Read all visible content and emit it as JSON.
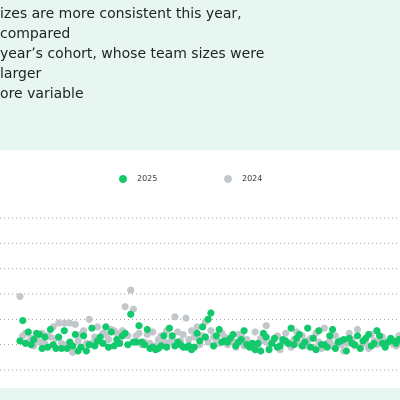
{
  "heading": "izes are more consistent this year, compared\nyear’s cohort, whose team sizes were larger\nore variable",
  "colors": {
    "2025": "#12c96c",
    "2024": "#c2c7cb",
    "background": "#e8f6f1",
    "gridline": "#9aa0a4"
  },
  "chart_data": {
    "type": "scatter",
    "legend": [
      "2025",
      "2024"
    ],
    "legend_position": "top-center",
    "grid": "horizontal",
    "ylim": [
      0,
      120
    ],
    "yticks": [
      0,
      20,
      40,
      60,
      80,
      100,
      120
    ],
    "x_count": 138,
    "series": [
      {
        "name": "2025",
        "points": [
          {
            "x": 1,
            "y": 23
          },
          {
            "x": 2,
            "y": 39
          },
          {
            "x": 3,
            "y": 21
          },
          {
            "x": 4,
            "y": 30
          },
          {
            "x": 5,
            "y": 20
          },
          {
            "x": 6,
            "y": 24
          },
          {
            "x": 7,
            "y": 29
          },
          {
            "x": 8,
            "y": 28
          },
          {
            "x": 9,
            "y": 17
          },
          {
            "x": 10,
            "y": 26
          },
          {
            "x": 11,
            "y": 18
          },
          {
            "x": 12,
            "y": 32
          },
          {
            "x": 13,
            "y": 20
          },
          {
            "x": 14,
            "y": 17
          },
          {
            "x": 15,
            "y": 26
          },
          {
            "x": 16,
            "y": 17
          },
          {
            "x": 17,
            "y": 31
          },
          {
            "x": 18,
            "y": 17
          },
          {
            "x": 19,
            "y": 22
          },
          {
            "x": 20,
            "y": 19
          },
          {
            "x": 21,
            "y": 28
          },
          {
            "x": 22,
            "y": 15
          },
          {
            "x": 23,
            "y": 18
          },
          {
            "x": 24,
            "y": 27
          },
          {
            "x": 25,
            "y": 15
          },
          {
            "x": 26,
            "y": 20
          },
          {
            "x": 27,
            "y": 33
          },
          {
            "x": 28,
            "y": 19
          },
          {
            "x": 29,
            "y": 23
          },
          {
            "x": 30,
            "y": 26
          },
          {
            "x": 31,
            "y": 21
          },
          {
            "x": 32,
            "y": 34
          },
          {
            "x": 33,
            "y": 18
          },
          {
            "x": 34,
            "y": 30
          },
          {
            "x": 35,
            "y": 19
          },
          {
            "x": 36,
            "y": 24
          },
          {
            "x": 37,
            "y": 21
          },
          {
            "x": 38,
            "y": 27
          },
          {
            "x": 39,
            "y": 29
          },
          {
            "x": 40,
            "y": 20
          },
          {
            "x": 41,
            "y": 44
          },
          {
            "x": 42,
            "y": 22
          },
          {
            "x": 43,
            "y": 22
          },
          {
            "x": 44,
            "y": 35
          },
          {
            "x": 45,
            "y": 22
          },
          {
            "x": 46,
            "y": 20
          },
          {
            "x": 47,
            "y": 32
          },
          {
            "x": 48,
            "y": 17
          },
          {
            "x": 49,
            "y": 18
          },
          {
            "x": 50,
            "y": 16
          },
          {
            "x": 51,
            "y": 17
          },
          {
            "x": 52,
            "y": 19
          },
          {
            "x": 53,
            "y": 27
          },
          {
            "x": 54,
            "y": 18
          },
          {
            "x": 55,
            "y": 33
          },
          {
            "x": 56,
            "y": 27
          },
          {
            "x": 57,
            "y": 19
          },
          {
            "x": 58,
            "y": 22
          },
          {
            "x": 59,
            "y": 20
          },
          {
            "x": 60,
            "y": 18
          },
          {
            "x": 61,
            "y": 18
          },
          {
            "x": 62,
            "y": 19
          },
          {
            "x": 63,
            "y": 16
          },
          {
            "x": 64,
            "y": 18
          },
          {
            "x": 65,
            "y": 29
          },
          {
            "x": 66,
            "y": 23
          },
          {
            "x": 67,
            "y": 34
          },
          {
            "x": 68,
            "y": 26
          },
          {
            "x": 69,
            "y": 40
          },
          {
            "x": 70,
            "y": 45
          },
          {
            "x": 71,
            "y": 19
          },
          {
            "x": 72,
            "y": 27
          },
          {
            "x": 73,
            "y": 32
          },
          {
            "x": 74,
            "y": 22
          },
          {
            "x": 75,
            "y": 23
          },
          {
            "x": 76,
            "y": 22
          },
          {
            "x": 77,
            "y": 25
          },
          {
            "x": 78,
            "y": 28
          },
          {
            "x": 79,
            "y": 19
          },
          {
            "x": 80,
            "y": 22
          },
          {
            "x": 81,
            "y": 24
          },
          {
            "x": 82,
            "y": 31
          },
          {
            "x": 83,
            "y": 20
          },
          {
            "x": 84,
            "y": 18
          },
          {
            "x": 85,
            "y": 21
          },
          {
            "x": 86,
            "y": 16
          },
          {
            "x": 87,
            "y": 21
          },
          {
            "x": 88,
            "y": 15
          },
          {
            "x": 89,
            "y": 29
          },
          {
            "x": 90,
            "y": 26
          },
          {
            "x": 91,
            "y": 16
          },
          {
            "x": 92,
            "y": 21
          },
          {
            "x": 93,
            "y": 25
          },
          {
            "x": 94,
            "y": 18
          },
          {
            "x": 95,
            "y": 19
          },
          {
            "x": 96,
            "y": 24
          },
          {
            "x": 97,
            "y": 23
          },
          {
            "x": 98,
            "y": 21
          },
          {
            "x": 99,
            "y": 33
          },
          {
            "x": 100,
            "y": 20
          },
          {
            "x": 101,
            "y": 25
          },
          {
            "x": 102,
            "y": 28
          },
          {
            "x": 103,
            "y": 19
          },
          {
            "x": 104,
            "y": 22
          },
          {
            "x": 105,
            "y": 33
          },
          {
            "x": 106,
            "y": 18
          },
          {
            "x": 107,
            "y": 25
          },
          {
            "x": 108,
            "y": 16
          },
          {
            "x": 109,
            "y": 31
          },
          {
            "x": 110,
            "y": 20
          },
          {
            "x": 111,
            "y": 20
          },
          {
            "x": 112,
            "y": 18
          },
          {
            "x": 113,
            "y": 27
          },
          {
            "x": 114,
            "y": 32
          },
          {
            "x": 115,
            "y": 17
          },
          {
            "x": 116,
            "y": 22
          },
          {
            "x": 117,
            "y": 23
          },
          {
            "x": 118,
            "y": 24
          },
          {
            "x": 119,
            "y": 15
          },
          {
            "x": 120,
            "y": 25
          },
          {
            "x": 121,
            "y": 21
          },
          {
            "x": 122,
            "y": 20
          },
          {
            "x": 123,
            "y": 27
          },
          {
            "x": 124,
            "y": 17
          },
          {
            "x": 125,
            "y": 23
          },
          {
            "x": 126,
            "y": 25
          },
          {
            "x": 127,
            "y": 28
          },
          {
            "x": 128,
            "y": 19
          },
          {
            "x": 129,
            "y": 21
          },
          {
            "x": 130,
            "y": 31
          },
          {
            "x": 131,
            "y": 27
          },
          {
            "x": 132,
            "y": 21
          },
          {
            "x": 133,
            "y": 18
          },
          {
            "x": 134,
            "y": 22
          },
          {
            "x": 135,
            "y": 25
          },
          {
            "x": 136,
            "y": 23
          },
          {
            "x": 137,
            "y": 21
          },
          {
            "x": 138,
            "y": 24
          }
        ]
      },
      {
        "name": "2024",
        "points": [
          {
            "x": 1,
            "y": 58
          },
          {
            "x": 2,
            "y": 27
          },
          {
            "x": 3,
            "y": 29
          },
          {
            "x": 4,
            "y": 22
          },
          {
            "x": 5,
            "y": 25
          },
          {
            "x": 6,
            "y": 19
          },
          {
            "x": 7,
            "y": 27
          },
          {
            "x": 8,
            "y": 22
          },
          {
            "x": 9,
            "y": 29
          },
          {
            "x": 10,
            "y": 21
          },
          {
            "x": 11,
            "y": 27
          },
          {
            "x": 12,
            "y": 26
          },
          {
            "x": 13,
            "y": 34
          },
          {
            "x": 14,
            "y": 25
          },
          {
            "x": 15,
            "y": 37
          },
          {
            "x": 16,
            "y": 21
          },
          {
            "x": 17,
            "y": 37
          },
          {
            "x": 18,
            "y": 20
          },
          {
            "x": 19,
            "y": 37
          },
          {
            "x": 20,
            "y": 14
          },
          {
            "x": 21,
            "y": 36
          },
          {
            "x": 22,
            "y": 23
          },
          {
            "x": 23,
            "y": 28
          },
          {
            "x": 24,
            "y": 31
          },
          {
            "x": 25,
            "y": 21
          },
          {
            "x": 26,
            "y": 40
          },
          {
            "x": 27,
            "y": 21
          },
          {
            "x": 28,
            "y": 26
          },
          {
            "x": 29,
            "y": 34
          },
          {
            "x": 30,
            "y": 22
          },
          {
            "x": 31,
            "y": 29
          },
          {
            "x": 32,
            "y": 28
          },
          {
            "x": 33,
            "y": 24
          },
          {
            "x": 34,
            "y": 32
          },
          {
            "x": 35,
            "y": 31
          },
          {
            "x": 36,
            "y": 29
          },
          {
            "x": 37,
            "y": 23
          },
          {
            "x": 38,
            "y": 31
          },
          {
            "x": 39,
            "y": 50
          },
          {
            "x": 40,
            "y": 27
          },
          {
            "x": 41,
            "y": 63
          },
          {
            "x": 42,
            "y": 48
          },
          {
            "x": 43,
            "y": 27
          },
          {
            "x": 44,
            "y": 29
          },
          {
            "x": 45,
            "y": 20
          },
          {
            "x": 46,
            "y": 22
          },
          {
            "x": 47,
            "y": 28
          },
          {
            "x": 48,
            "y": 21
          },
          {
            "x": 49,
            "y": 30
          },
          {
            "x": 50,
            "y": 19
          },
          {
            "x": 51,
            "y": 24
          },
          {
            "x": 52,
            "y": 27
          },
          {
            "x": 53,
            "y": 22
          },
          {
            "x": 54,
            "y": 31
          },
          {
            "x": 55,
            "y": 22
          },
          {
            "x": 56,
            "y": 25
          },
          {
            "x": 57,
            "y": 42
          },
          {
            "x": 58,
            "y": 30
          },
          {
            "x": 59,
            "y": 23
          },
          {
            "x": 60,
            "y": 28
          },
          {
            "x": 61,
            "y": 41
          },
          {
            "x": 62,
            "y": 24
          },
          {
            "x": 63,
            "y": 31
          },
          {
            "x": 64,
            "y": 26
          },
          {
            "x": 65,
            "y": 34
          },
          {
            "x": 66,
            "y": 20
          },
          {
            "x": 67,
            "y": 27
          },
          {
            "x": 68,
            "y": 38
          },
          {
            "x": 69,
            "y": 22
          },
          {
            "x": 70,
            "y": 31
          },
          {
            "x": 71,
            "y": 26
          },
          {
            "x": 72,
            "y": 24
          },
          {
            "x": 73,
            "y": 21
          },
          {
            "x": 74,
            "y": 29
          },
          {
            "x": 75,
            "y": 26
          },
          {
            "x": 76,
            "y": 20
          },
          {
            "x": 77,
            "y": 22
          },
          {
            "x": 78,
            "y": 23
          },
          {
            "x": 79,
            "y": 18
          },
          {
            "x": 80,
            "y": 28
          },
          {
            "x": 81,
            "y": 27
          },
          {
            "x": 82,
            "y": 19
          },
          {
            "x": 83,
            "y": 24
          },
          {
            "x": 84,
            "y": 21
          },
          {
            "x": 85,
            "y": 18
          },
          {
            "x": 86,
            "y": 30
          },
          {
            "x": 87,
            "y": 20
          },
          {
            "x": 88,
            "y": 25
          },
          {
            "x": 89,
            "y": 23
          },
          {
            "x": 90,
            "y": 35
          },
          {
            "x": 91,
            "y": 20
          },
          {
            "x": 92,
            "y": 22
          },
          {
            "x": 93,
            "y": 24
          },
          {
            "x": 94,
            "y": 27
          },
          {
            "x": 95,
            "y": 16
          },
          {
            "x": 96,
            "y": 22
          },
          {
            "x": 97,
            "y": 29
          },
          {
            "x": 98,
            "y": 21
          },
          {
            "x": 99,
            "y": 18
          },
          {
            "x": 100,
            "y": 24
          },
          {
            "x": 101,
            "y": 30
          },
          {
            "x": 102,
            "y": 21
          },
          {
            "x": 103,
            "y": 27
          },
          {
            "x": 104,
            "y": 19
          },
          {
            "x": 105,
            "y": 23
          },
          {
            "x": 106,
            "y": 25
          },
          {
            "x": 107,
            "y": 18
          },
          {
            "x": 108,
            "y": 29
          },
          {
            "x": 109,
            "y": 22
          },
          {
            "x": 110,
            "y": 17
          },
          {
            "x": 111,
            "y": 33
          },
          {
            "x": 112,
            "y": 21
          },
          {
            "x": 113,
            "y": 23
          },
          {
            "x": 114,
            "y": 19
          },
          {
            "x": 115,
            "y": 27
          },
          {
            "x": 116,
            "y": 22
          },
          {
            "x": 117,
            "y": 20
          },
          {
            "x": 118,
            "y": 15
          },
          {
            "x": 119,
            "y": 21
          },
          {
            "x": 120,
            "y": 29
          },
          {
            "x": 121,
            "y": 24
          },
          {
            "x": 122,
            "y": 19
          },
          {
            "x": 123,
            "y": 32
          },
          {
            "x": 124,
            "y": 18
          },
          {
            "x": 125,
            "y": 22
          },
          {
            "x": 126,
            "y": 21
          },
          {
            "x": 127,
            "y": 17
          },
          {
            "x": 128,
            "y": 28
          },
          {
            "x": 129,
            "y": 23
          },
          {
            "x": 130,
            "y": 20
          },
          {
            "x": 131,
            "y": 23
          },
          {
            "x": 132,
            "y": 26
          },
          {
            "x": 133,
            "y": 19
          },
          {
            "x": 134,
            "y": 22
          },
          {
            "x": 135,
            "y": 24
          },
          {
            "x": 136,
            "y": 20
          },
          {
            "x": 137,
            "y": 19
          },
          {
            "x": 138,
            "y": 27
          }
        ]
      }
    ]
  }
}
